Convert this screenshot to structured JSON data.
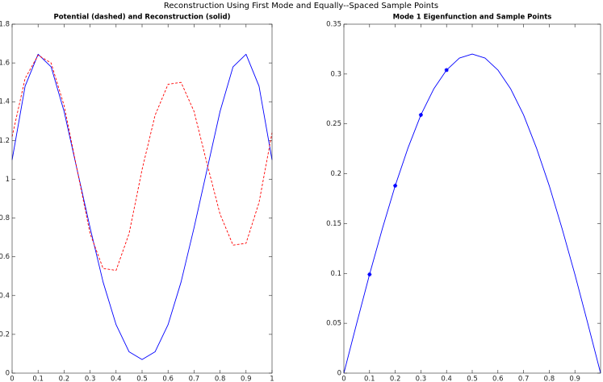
{
  "title": "Reconstruction Using First Mode and Equally--Spaced Sample Points",
  "chart_data": [
    {
      "type": "line",
      "title": "Potential (dashed) and Reconstruction (solid)",
      "x": [
        0,
        0.05,
        0.1,
        0.15,
        0.2,
        0.25,
        0.3,
        0.35,
        0.4,
        0.45,
        0.5,
        0.55,
        0.6,
        0.65,
        0.7,
        0.75,
        0.8,
        0.85,
        0.9,
        0.95,
        1
      ],
      "series": [
        {
          "name": "Reconstruction",
          "color": "#0000ff",
          "style": "solid",
          "values": [
            1.1,
            1.48,
            1.645,
            1.58,
            1.35,
            1.05,
            0.75,
            0.47,
            0.25,
            0.11,
            0.07,
            0.11,
            0.25,
            0.47,
            0.75,
            1.05,
            1.35,
            1.58,
            1.645,
            1.48,
            1.1
          ]
        },
        {
          "name": "Potential",
          "color": "#ff0000",
          "style": "dashed",
          "values": [
            1.22,
            1.52,
            1.64,
            1.6,
            1.38,
            1.05,
            0.72,
            0.54,
            0.53,
            0.72,
            1.05,
            1.33,
            1.49,
            1.5,
            1.35,
            1.08,
            0.82,
            0.66,
            0.67,
            0.88,
            1.24
          ]
        }
      ],
      "xlim": [
        0,
        1
      ],
      "xticks": [
        0,
        0.1,
        0.2,
        0.3,
        0.4,
        0.5,
        0.6,
        0.7,
        0.8,
        0.9,
        1
      ],
      "ylim": [
        0,
        1.8
      ],
      "yticks": [
        0,
        0.2,
        0.4,
        0.6,
        0.8,
        1,
        1.2,
        1.4,
        1.6,
        1.8
      ]
    },
    {
      "type": "line",
      "title": "Mode 1 Eigenfunction and Sample Points",
      "x": [
        0,
        0.05,
        0.1,
        0.15,
        0.2,
        0.25,
        0.3,
        0.35,
        0.4,
        0.45,
        0.5,
        0.55,
        0.6,
        0.65,
        0.7,
        0.75,
        0.8,
        0.85,
        0.9,
        0.95,
        1
      ],
      "series": [
        {
          "name": "Mode 1",
          "color": "#0000ff",
          "style": "solid",
          "values": [
            0,
            0.05,
            0.099,
            0.145,
            0.188,
            0.226,
            0.259,
            0.285,
            0.304,
            0.316,
            0.32,
            0.316,
            0.304,
            0.285,
            0.259,
            0.226,
            0.188,
            0.145,
            0.099,
            0.05,
            0
          ]
        },
        {
          "name": "Sample Points",
          "color": "#0000ff",
          "style": "markers",
          "x": [
            0.1,
            0.2,
            0.3,
            0.4
          ],
          "values": [
            0.099,
            0.188,
            0.259,
            0.304
          ]
        }
      ],
      "xlim": [
        0,
        1
      ],
      "xticks": [
        0,
        0.1,
        0.2,
        0.3,
        0.4,
        0.5,
        0.6,
        0.7,
        0.8,
        0.9
      ],
      "ylim": [
        0,
        0.35
      ],
      "yticks": [
        0,
        0.05,
        0.1,
        0.15,
        0.2,
        0.25,
        0.3,
        0.35
      ]
    }
  ]
}
